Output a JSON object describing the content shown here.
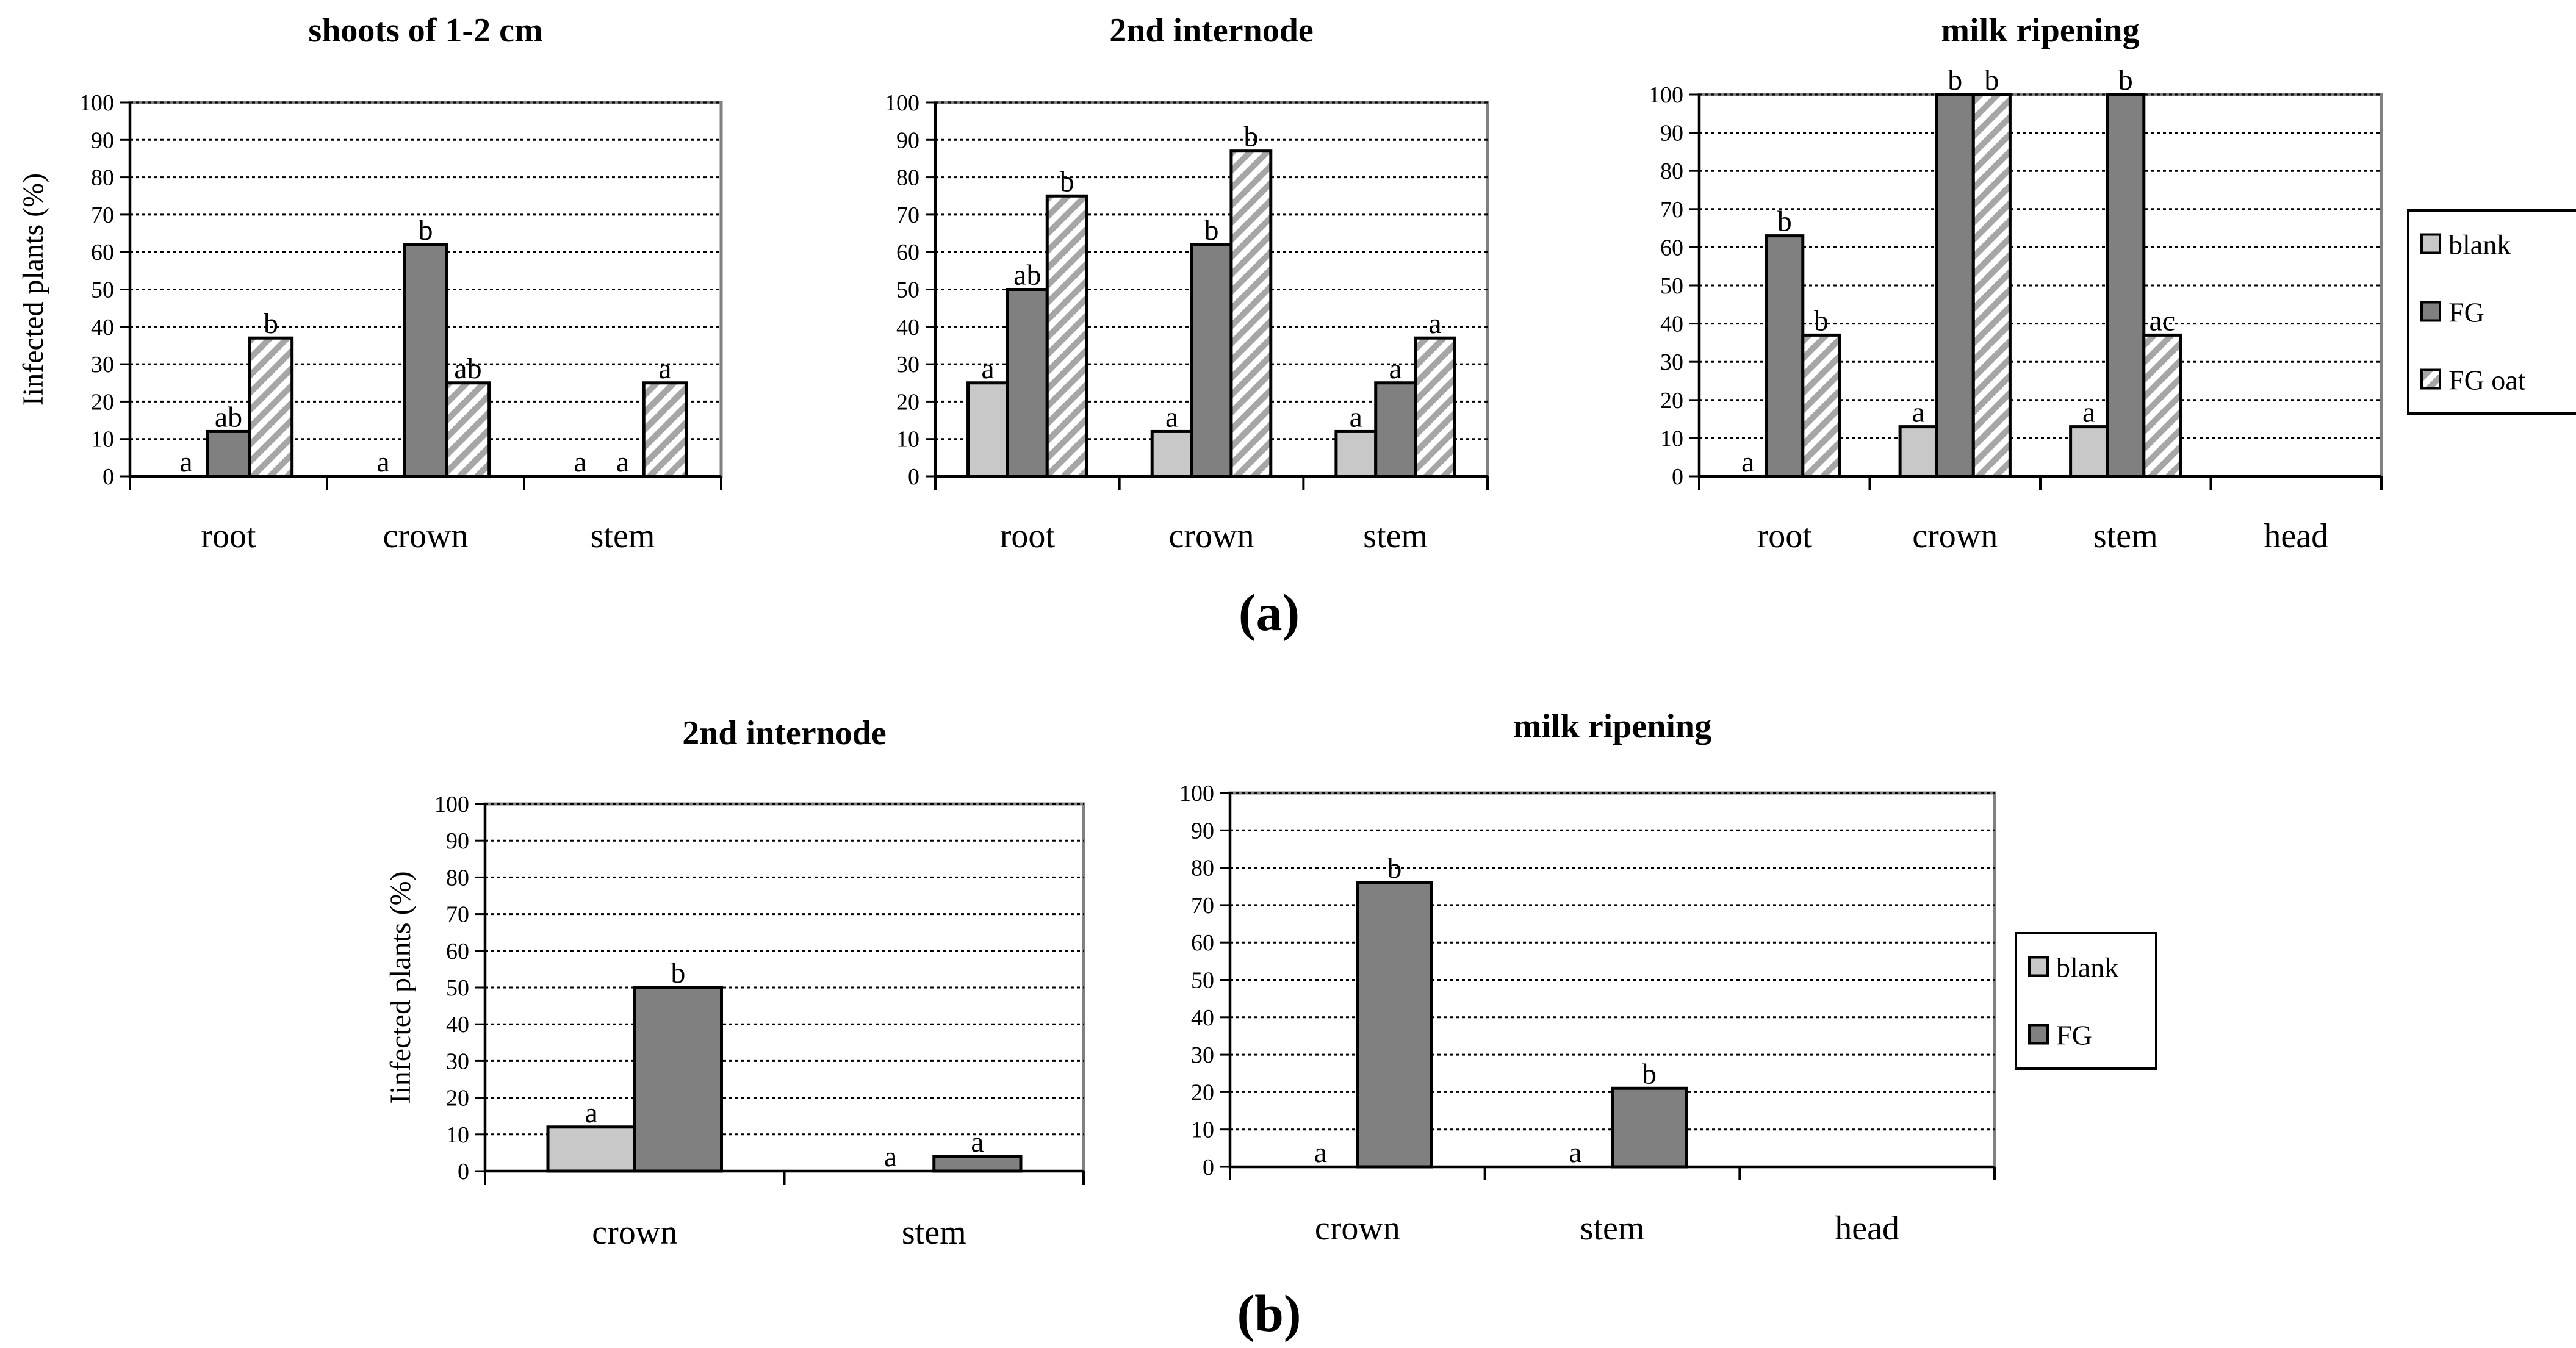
{
  "colors": {
    "blank": "#c8c8c8",
    "fg": "#808080",
    "fg_oat_stripe": "#a6a6a6",
    "fg_oat_bg": "#ffffff",
    "grid": "#000000",
    "frame": "#808080"
  },
  "panels": {
    "a": "(a)",
    "b": "(b)"
  },
  "chart_data": [
    {
      "id": "a1",
      "type": "bar",
      "title": "shoots of 1-2 cm",
      "ylabel": "Iinfected plants (%)",
      "ylim": [
        0,
        100
      ],
      "yticks": [
        "0",
        "10",
        "20",
        "30",
        "40",
        "50",
        "60",
        "70",
        "80",
        "90",
        "100"
      ],
      "grid": true,
      "categories": [
        "root",
        "crown",
        "stem"
      ],
      "series": [
        {
          "name": "blank",
          "values": [
            0,
            0,
            0
          ],
          "labels": [
            "a",
            "a",
            "a"
          ]
        },
        {
          "name": "FG",
          "values": [
            12,
            62,
            0
          ],
          "labels": [
            "ab",
            "b",
            "a"
          ]
        },
        {
          "name": "FG oat",
          "values": [
            37,
            25,
            25
          ],
          "labels": [
            "b",
            "ab",
            "a"
          ]
        }
      ]
    },
    {
      "id": "a2",
      "type": "bar",
      "title": "2nd internode",
      "ylabel": "",
      "ylim": [
        0,
        100
      ],
      "yticks": [
        "0",
        "10",
        "20",
        "30",
        "40",
        "50",
        "60",
        "70",
        "80",
        "90",
        "100"
      ],
      "grid": true,
      "categories": [
        "root",
        "crown",
        "stem"
      ],
      "series": [
        {
          "name": "blank",
          "values": [
            25,
            12,
            12
          ],
          "labels": [
            "a",
            "a",
            "a"
          ]
        },
        {
          "name": "FG",
          "values": [
            50,
            62,
            25
          ],
          "labels": [
            "ab",
            "b",
            "a"
          ]
        },
        {
          "name": "FG oat",
          "values": [
            75,
            87,
            37
          ],
          "labels": [
            "b",
            "b",
            "a"
          ]
        }
      ]
    },
    {
      "id": "a3",
      "type": "bar",
      "title": "milk ripening",
      "ylabel": "",
      "ylim": [
        0,
        100
      ],
      "yticks": [
        "0",
        "10",
        "20",
        "30",
        "40",
        "50",
        "60",
        "70",
        "80",
        "90",
        "100"
      ],
      "grid": true,
      "categories": [
        "root",
        "crown",
        "stem",
        "head"
      ],
      "series": [
        {
          "name": "blank",
          "values": [
            0,
            13,
            13,
            0
          ],
          "labels": [
            "a",
            "a",
            "a",
            ""
          ]
        },
        {
          "name": "FG",
          "values": [
            63,
            100,
            100,
            0
          ],
          "labels": [
            "b",
            "b",
            "b",
            ""
          ]
        },
        {
          "name": "FG oat",
          "values": [
            37,
            100,
            37,
            0
          ],
          "labels": [
            "b",
            "b",
            "ac",
            ""
          ]
        }
      ],
      "legend": {
        "placement": "right",
        "entries": [
          "blank",
          "FG",
          "FG oat"
        ]
      }
    },
    {
      "id": "b1",
      "type": "bar",
      "title": "2nd internode",
      "ylabel": "Iinfected plants (%)",
      "ylim": [
        0,
        100
      ],
      "yticks": [
        "0",
        "10",
        "20",
        "30",
        "40",
        "50",
        "60",
        "70",
        "80",
        "90",
        "100"
      ],
      "grid": true,
      "categories": [
        "crown",
        "stem"
      ],
      "series": [
        {
          "name": "blank",
          "values": [
            12,
            0
          ],
          "labels": [
            "a",
            "a"
          ]
        },
        {
          "name": "FG",
          "values": [
            50,
            4
          ],
          "labels": [
            "b",
            "a"
          ]
        }
      ]
    },
    {
      "id": "b2",
      "type": "bar",
      "title": "milk ripening",
      "ylabel": "",
      "ylim": [
        0,
        100
      ],
      "yticks": [
        "0",
        "10",
        "20",
        "30",
        "40",
        "50",
        "60",
        "70",
        "80",
        "90",
        "100"
      ],
      "grid": true,
      "categories": [
        "crown",
        "stem",
        "head"
      ],
      "series": [
        {
          "name": "blank",
          "values": [
            0,
            0,
            0
          ],
          "labels": [
            "a",
            "a",
            ""
          ]
        },
        {
          "name": "FG",
          "values": [
            76,
            21,
            0
          ],
          "labels": [
            "b",
            "b",
            ""
          ]
        }
      ],
      "legend": {
        "placement": "right",
        "entries": [
          "blank",
          "FG"
        ]
      }
    }
  ]
}
